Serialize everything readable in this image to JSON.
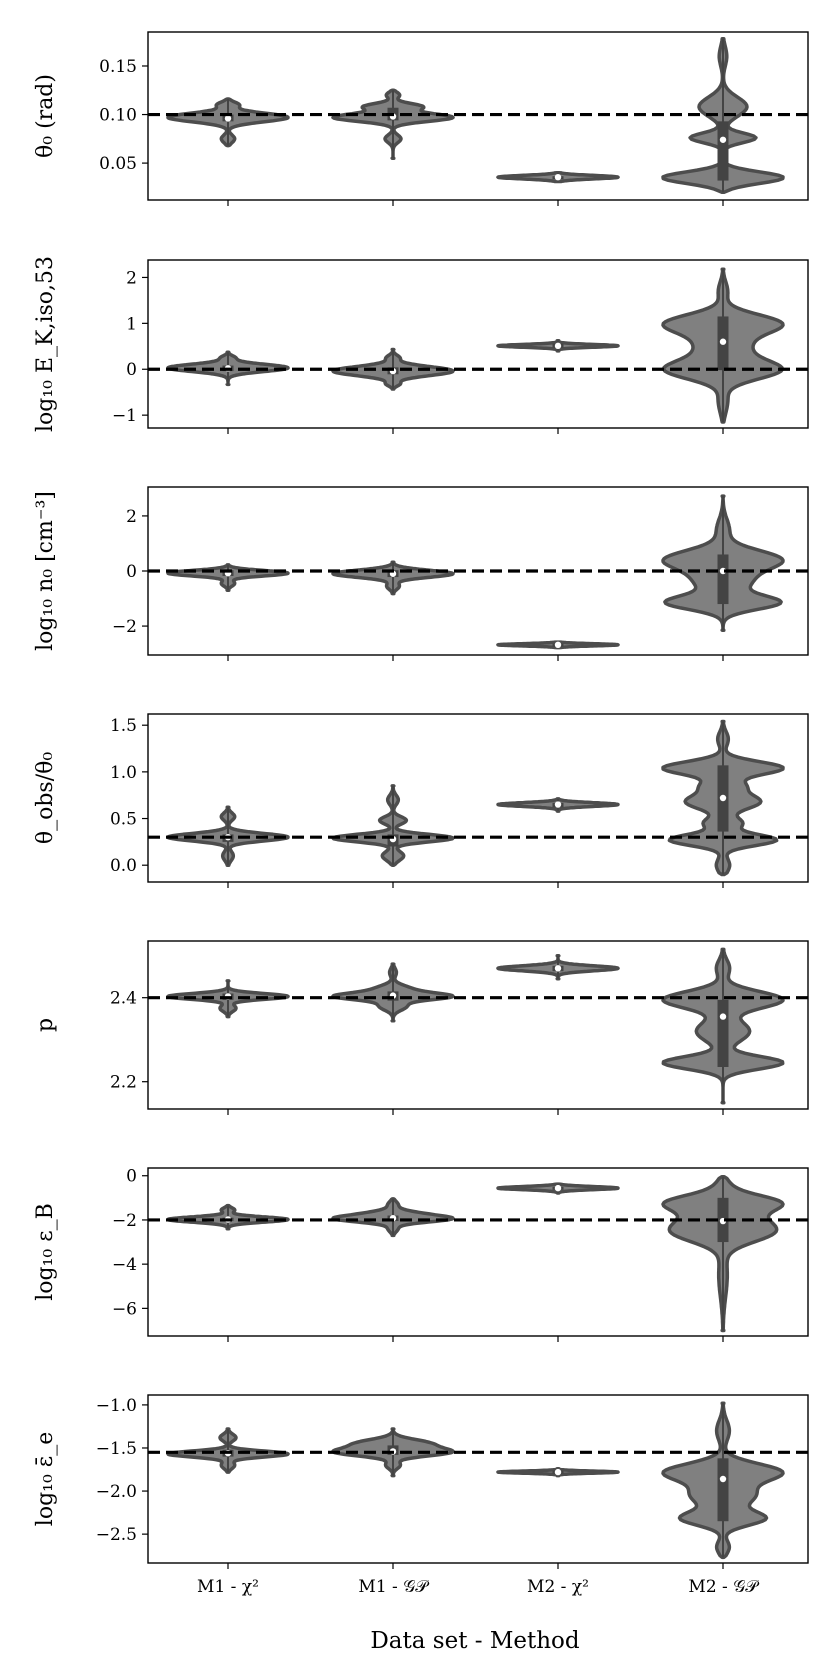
{
  "chart_data": {
    "type": "violin",
    "categories": [
      "M1 - χ²",
      "M1 - 𝒢𝒫",
      "M2 - χ²",
      "M2 - 𝒢𝒫"
    ],
    "xlabel": "Data set - Method",
    "colors": {
      "violin_fill": "#808080",
      "violin_edge": "#4d4d4d",
      "box": "#444444",
      "median": "#ffffff",
      "truth_line": "#000000"
    },
    "panels": [
      {
        "id": "theta0",
        "ylabel": "θ₀ (rad)",
        "ylim": [
          0.012,
          0.185
        ],
        "yticks": [
          0.05,
          0.1,
          0.15
        ],
        "ytick_labels": [
          "0.05",
          "0.10",
          "0.15"
        ],
        "truth": 0.1,
        "violins": [
          {
            "min": 0.068,
            "max": 0.116,
            "q1": 0.093,
            "median": 0.096,
            "q3": 0.1,
            "modes": [
              [
                0.097,
                0.45,
                0.0045
              ],
              [
                0.11,
                0.08,
                0.003
              ],
              [
                0.075,
                0.05,
                0.004
              ]
            ]
          },
          {
            "min": 0.055,
            "max": 0.125,
            "q1": 0.094,
            "median": 0.098,
            "q3": 0.107,
            "modes": [
              [
                0.097,
                0.45,
                0.004
              ],
              [
                0.108,
                0.22,
                0.0035
              ],
              [
                0.075,
                0.06,
                0.004
              ],
              [
                0.12,
                0.05,
                0.003
              ]
            ]
          },
          {
            "min": 0.031,
            "max": 0.04,
            "q1": 0.0345,
            "median": 0.0355,
            "q3": 0.0365,
            "modes": [
              [
                0.0355,
                0.45,
                0.0018
              ]
            ]
          },
          {
            "min": 0.02,
            "max": 0.178,
            "q1": 0.032,
            "median": 0.074,
            "q3": 0.093,
            "modes": [
              [
                0.035,
                0.48,
                0.006
              ],
              [
                0.076,
                0.26,
                0.005
              ],
              [
                0.108,
                0.19,
                0.01
              ],
              [
                0.16,
                0.03,
                0.01
              ]
            ]
          }
        ]
      },
      {
        "id": "logE",
        "ylabel": "log₁₀ E_K,iso,53",
        "ylim": [
          -1.28,
          2.38
        ],
        "yticks": [
          -1,
          0,
          1,
          2
        ],
        "ytick_labels": [
          "−1",
          "0",
          "1",
          "2"
        ],
        "truth": 0.0,
        "violins": [
          {
            "min": -0.33,
            "max": 0.37,
            "q1": -0.04,
            "median": 0.02,
            "q3": 0.08,
            "modes": [
              [
                0.03,
                0.45,
                0.08
              ],
              [
                0.25,
                0.05,
                0.05
              ]
            ]
          },
          {
            "min": -0.43,
            "max": 0.43,
            "q1": -0.11,
            "median": -0.04,
            "q3": 0.04,
            "modes": [
              [
                -0.04,
                0.48,
                0.1
              ],
              [
                0.25,
                0.05,
                0.06
              ],
              [
                -0.32,
                0.05,
                0.05
              ]
            ]
          },
          {
            "min": 0.4,
            "max": 0.62,
            "q1": 0.47,
            "median": 0.51,
            "q3": 0.56,
            "modes": [
              [
                0.51,
                0.46,
                0.03
              ]
            ]
          },
          {
            "min": -1.15,
            "max": 2.18,
            "q1": -0.02,
            "median": 0.6,
            "q3": 1.15,
            "modes": [
              [
                1.0,
                0.45,
                0.2
              ],
              [
                -0.02,
                0.45,
                0.2
              ],
              [
                0.5,
                0.22,
                0.3
              ],
              [
                -0.7,
                0.04,
                0.25
              ],
              [
                1.7,
                0.04,
                0.2
              ]
            ]
          }
        ]
      },
      {
        "id": "logn0",
        "ylabel": "log₁₀ n₀ [cm⁻³]",
        "ylim": [
          -3.05,
          3.05
        ],
        "yticks": [
          -2,
          0,
          2
        ],
        "ytick_labels": [
          "−2",
          "0",
          "2"
        ],
        "truth": 0.0,
        "violins": [
          {
            "min": -0.7,
            "max": 0.22,
            "q1": -0.18,
            "median": -0.08,
            "q3": 0.03,
            "modes": [
              [
                -0.08,
                0.45,
                0.1
              ],
              [
                -0.45,
                0.05,
                0.1
              ]
            ]
          },
          {
            "min": -0.82,
            "max": 0.32,
            "q1": -0.22,
            "median": -0.1,
            "q3": 0.03,
            "modes": [
              [
                -0.1,
                0.48,
                0.13
              ],
              [
                -0.55,
                0.05,
                0.12
              ]
            ]
          },
          {
            "min": -2.78,
            "max": -2.58,
            "q1": -2.71,
            "median": -2.68,
            "q3": -2.64,
            "modes": [
              [
                -2.68,
                0.45,
                0.04
              ]
            ]
          },
          {
            "min": -2.15,
            "max": 2.72,
            "q1": -1.2,
            "median": 0.0,
            "q3": 0.6,
            "modes": [
              [
                0.4,
                0.46,
                0.35
              ],
              [
                -1.15,
                0.44,
                0.25
              ],
              [
                -0.4,
                0.2,
                0.35
              ],
              [
                1.5,
                0.05,
                0.4
              ]
            ]
          }
        ]
      },
      {
        "id": "thetaobs",
        "ylabel": "θ_obs/θ₀",
        "ylim": [
          -0.18,
          1.62
        ],
        "yticks": [
          0.0,
          0.5,
          1.0,
          1.5
        ],
        "ytick_labels": [
          "0.0",
          "0.5",
          "1.0",
          "1.5"
        ],
        "truth": 0.3,
        "violins": [
          {
            "min": 0.0,
            "max": 0.62,
            "q1": 0.25,
            "median": 0.3,
            "q3": 0.33,
            "modes": [
              [
                0.3,
                0.45,
                0.04
              ],
              [
                0.52,
                0.05,
                0.04
              ],
              [
                0.1,
                0.04,
                0.05
              ]
            ]
          },
          {
            "min": 0.0,
            "max": 0.85,
            "q1": 0.2,
            "median": 0.28,
            "q3": 0.33,
            "modes": [
              [
                0.29,
                0.45,
                0.04
              ],
              [
                0.48,
                0.1,
                0.04
              ],
              [
                0.1,
                0.08,
                0.05
              ],
              [
                0.7,
                0.04,
                0.05
              ]
            ]
          },
          {
            "min": 0.58,
            "max": 0.71,
            "q1": 0.62,
            "median": 0.65,
            "q3": 0.67,
            "modes": [
              [
                0.65,
                0.45,
                0.02
              ]
            ]
          },
          {
            "min": -0.1,
            "max": 1.54,
            "q1": 0.36,
            "median": 0.72,
            "q3": 1.07,
            "modes": [
              [
                1.04,
                0.45,
                0.07
              ],
              [
                0.27,
                0.4,
                0.06
              ],
              [
                0.68,
                0.28,
                0.08
              ],
              [
                0.85,
                0.14,
                0.06
              ],
              [
                0.45,
                0.14,
                0.06
              ],
              [
                0.0,
                0.05,
                0.08
              ],
              [
                1.35,
                0.04,
                0.08
              ]
            ]
          }
        ]
      },
      {
        "id": "p",
        "ylabel": "p",
        "ylim": [
          2.135,
          2.535
        ],
        "yticks": [
          2.2,
          2.4
        ],
        "ytick_labels": [
          "2.2",
          "2.4"
        ],
        "truth": 2.4,
        "violins": [
          {
            "min": 2.355,
            "max": 2.44,
            "q1": 2.395,
            "median": 2.403,
            "q3": 2.41,
            "modes": [
              [
                2.403,
                0.45,
                0.007
              ],
              [
                2.375,
                0.06,
                0.008
              ]
            ]
          },
          {
            "min": 2.345,
            "max": 2.48,
            "q1": 2.393,
            "median": 2.405,
            "q3": 2.415,
            "modes": [
              [
                2.403,
                0.48,
                0.008
              ],
              [
                2.42,
                0.15,
                0.01
              ],
              [
                2.38,
                0.12,
                0.01
              ],
              [
                2.46,
                0.03,
                0.01
              ]
            ]
          },
          {
            "min": 2.445,
            "max": 2.5,
            "q1": 2.463,
            "median": 2.47,
            "q3": 2.476,
            "modes": [
              [
                2.47,
                0.46,
                0.006
              ]
            ]
          },
          {
            "min": 2.15,
            "max": 2.515,
            "q1": 2.235,
            "median": 2.355,
            "q3": 2.395,
            "modes": [
              [
                2.395,
                0.45,
                0.02
              ],
              [
                2.245,
                0.45,
                0.015
              ],
              [
                2.32,
                0.2,
                0.025
              ],
              [
                2.47,
                0.05,
                0.02
              ]
            ]
          }
        ]
      },
      {
        "id": "logeB",
        "ylabel": "log₁₀ ε_B",
        "ylim": [
          -7.25,
          0.35
        ],
        "yticks": [
          -6,
          -4,
          -2,
          0
        ],
        "ytick_labels": [
          "−6",
          "−4",
          "−2",
          "0"
        ],
        "truth": -2.0,
        "violins": [
          {
            "min": -2.4,
            "max": -1.35,
            "q1": -2.05,
            "median": -1.98,
            "q3": -1.9,
            "modes": [
              [
                -1.98,
                0.45,
                0.12
              ],
              [
                -1.55,
                0.05,
                0.1
              ]
            ]
          },
          {
            "min": -2.7,
            "max": -1.05,
            "q1": -2.05,
            "median": -1.92,
            "q3": -1.8,
            "modes": [
              [
                -1.95,
                0.45,
                0.15
              ],
              [
                -1.7,
                0.15,
                0.15
              ],
              [
                -1.3,
                0.04,
                0.15
              ],
              [
                -2.4,
                0.04,
                0.15
              ]
            ]
          },
          {
            "min": -0.78,
            "max": -0.38,
            "q1": -0.62,
            "median": -0.56,
            "q3": -0.5,
            "modes": [
              [
                -0.56,
                0.46,
                0.07
              ]
            ]
          },
          {
            "min": -7.0,
            "max": -0.05,
            "q1": -3.0,
            "median": -2.05,
            "q3": -1.0,
            "modes": [
              [
                -1.2,
                0.45,
                0.35
              ],
              [
                -2.6,
                0.38,
                0.45
              ],
              [
                -1.9,
                0.25,
                0.5
              ],
              [
                -4.5,
                0.04,
                1.0
              ],
              [
                -0.4,
                0.05,
                0.3
              ]
            ]
          }
        ]
      },
      {
        "id": "logee",
        "ylabel": "log₁₀ ε̄_e",
        "ylim": [
          -2.835,
          -0.885
        ],
        "yticks": [
          -2.5,
          -2.0,
          -1.5,
          -1.0
        ],
        "ytick_labels": [
          "−2.5",
          "−2.0",
          "−1.5",
          "−1.0"
        ],
        "truth": -1.55,
        "violins": [
          {
            "min": -1.78,
            "max": -1.28,
            "q1": -1.6,
            "median": -1.56,
            "q3": -1.52,
            "modes": [
              [
                -1.57,
                0.45,
                0.035
              ],
              [
                -1.38,
                0.06,
                0.04
              ],
              [
                -1.7,
                0.05,
                0.04
              ]
            ]
          },
          {
            "min": -1.82,
            "max": -1.28,
            "q1": -1.58,
            "median": -1.54,
            "q3": -1.47,
            "modes": [
              [
                -1.55,
                0.45,
                0.045
              ],
              [
                -1.45,
                0.3,
                0.05
              ],
              [
                -1.7,
                0.06,
                0.04
              ]
            ]
          },
          {
            "min": -1.82,
            "max": -1.74,
            "q1": -1.795,
            "median": -1.78,
            "q3": -1.765,
            "modes": [
              [
                -1.78,
                0.45,
                0.012
              ]
            ]
          },
          {
            "min": -2.77,
            "max": -0.98,
            "q1": -2.35,
            "median": -1.86,
            "q3": -1.62,
            "modes": [
              [
                -1.78,
                0.45,
                0.1
              ],
              [
                -2.32,
                0.32,
                0.08
              ],
              [
                -2.05,
                0.25,
                0.12
              ],
              [
                -2.65,
                0.05,
                0.08
              ],
              [
                -1.3,
                0.05,
                0.12
              ]
            ]
          }
        ]
      }
    ]
  }
}
